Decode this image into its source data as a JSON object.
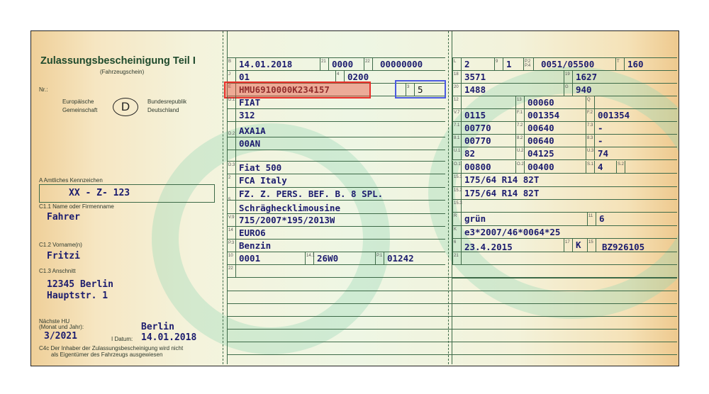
{
  "header": {
    "title": "Zulassungsbescheinigung Teil I",
    "subtitle": "(Fahrzeugschein)",
    "nr_label": "Nr.:",
    "eu_left_1": "Europäische",
    "eu_left_2": "Gemeinschaft",
    "country_code": "D",
    "eu_right_1": "Bundesrepublik",
    "eu_right_2": "Deutschland"
  },
  "holder": {
    "plate_label": "A Amtliches Kennzeichen",
    "plate": "XX - Z- 123",
    "name_label": "C1.1 Name oder Firmenname",
    "name": "Fahrer",
    "firstname_label": "C1.2 Vorname(n)",
    "firstname": "Fritzi",
    "address_label": "C1.3 Anschnitt",
    "address_1": "12345 Berlin",
    "address_2": "Hauptstr. 1",
    "hu_label_1": "Nächste HU",
    "hu_label_2": "(Monat und Jahr):",
    "hu": "3/2021",
    "place": "Berlin",
    "date_label": "I Datum:",
    "date": "14.01.2018",
    "c4c_1": "C4c Der Inhaber der Zulassungsbescheinigung wird nicht",
    "c4c_2": "als Eigentümer des Fahrzeugs ausgewiesen"
  },
  "highlight_colors": {
    "vin_box": "#e8302a",
    "field3_box": "#4a5ae0"
  },
  "mid": {
    "B": {
      "code": "B",
      "value": "14.01.2018"
    },
    "f21": {
      "code": "21",
      "value": "0000"
    },
    "f22": {
      "code": "22",
      "value": "00000000"
    },
    "J": {
      "code": "J",
      "value": "01"
    },
    "f4": {
      "code": "4",
      "value": "0200"
    },
    "E": {
      "code": "E",
      "value": "HMU6910000K234157"
    },
    "f3": {
      "code": "3",
      "value": "5"
    },
    "D1": {
      "code": "D.1",
      "value": "FIAT",
      "value2": "312"
    },
    "D2": {
      "code": "D.2",
      "value": "AXA1A",
      "value2": "00AN"
    },
    "D3": {
      "code": "D.3",
      "value": "Fiat 500"
    },
    "f2": {
      "code": "2",
      "value": "FCA Italy"
    },
    "f5": {
      "code": "5",
      "value": "FZ. Z. PERS. BEF. B. 8 SPL.",
      "value2": "Schräghecklimousine"
    },
    "V9": {
      "code": "V.9",
      "value": "715/2007*195/2013W"
    },
    "f14": {
      "code": "14",
      "value": "EURO6"
    },
    "P3": {
      "code": "P.3",
      "value": "Benzin"
    },
    "f10": {
      "code": "10",
      "value": "0001"
    },
    "f141": {
      "code": "14.1",
      "value": "26W0"
    },
    "P1": {
      "code": "P.1",
      "value": "01242"
    },
    "f22b": {
      "code": "22"
    }
  },
  "right": {
    "L": {
      "code": "L",
      "value": "2"
    },
    "f9": {
      "code": "9",
      "value": "1"
    },
    "P2P4": {
      "code": "P.2 P.4",
      "value": "0051/05500"
    },
    "T": {
      "code": "T",
      "value": "160"
    },
    "f18": {
      "code": "18",
      "value": "3571"
    },
    "f19": {
      "code": "19",
      "value": "1627"
    },
    "f20": {
      "code": "20",
      "value": "1488"
    },
    "G": {
      "code": "G",
      "value": "940"
    },
    "f12": {
      "code": "12",
      "value": ""
    },
    "f13": {
      "code": "13",
      "value": "00060"
    },
    "Q": {
      "code": "Q",
      "value": ""
    },
    "V7": {
      "code": "V.7",
      "value": "0115"
    },
    "F1": {
      "code": "F.1",
      "value": "001354"
    },
    "F2": {
      "code": "F.2",
      "value": "001354"
    },
    "f71": {
      "code": "7.1",
      "value": "00770"
    },
    "f72": {
      "code": "7.2",
      "value": "00640"
    },
    "f73": {
      "code": "7.3",
      "value": "-"
    },
    "f81": {
      "code": "8.1",
      "value": "00770"
    },
    "f82": {
      "code": "8.2",
      "value": "00640"
    },
    "f83": {
      "code": "8.3",
      "value": "-"
    },
    "U1": {
      "code": "U.1",
      "value": "82"
    },
    "U2": {
      "code": "U.2",
      "value": "04125"
    },
    "U3": {
      "code": "U.3",
      "value": "74"
    },
    "O1": {
      "code": "O.1",
      "value": "00800"
    },
    "O2": {
      "code": "O.2",
      "value": "00400"
    },
    "S1": {
      "code": "S.1",
      "value": "4"
    },
    "S2": {
      "code": "S.2",
      "value": ""
    },
    "f151": {
      "code": "15.1",
      "value": "175/64 R14 82T"
    },
    "f152": {
      "code": "15.2",
      "value": "175/64 R14 82T"
    },
    "f153": {
      "code": "15.3",
      "value": ""
    },
    "R": {
      "code": "R",
      "value": "grün"
    },
    "f11": {
      "code": "11",
      "value": "6"
    },
    "K": {
      "code": "K",
      "value": "e3*2007/46*0064*25"
    },
    "f6": {
      "code": "6",
      "value": "23.4.2015"
    },
    "f17": {
      "code": "17",
      "value": "K"
    },
    "f15": {
      "code": "15",
      "value": "BZ926105"
    },
    "f21": {
      "code": "21",
      "value": ""
    }
  }
}
